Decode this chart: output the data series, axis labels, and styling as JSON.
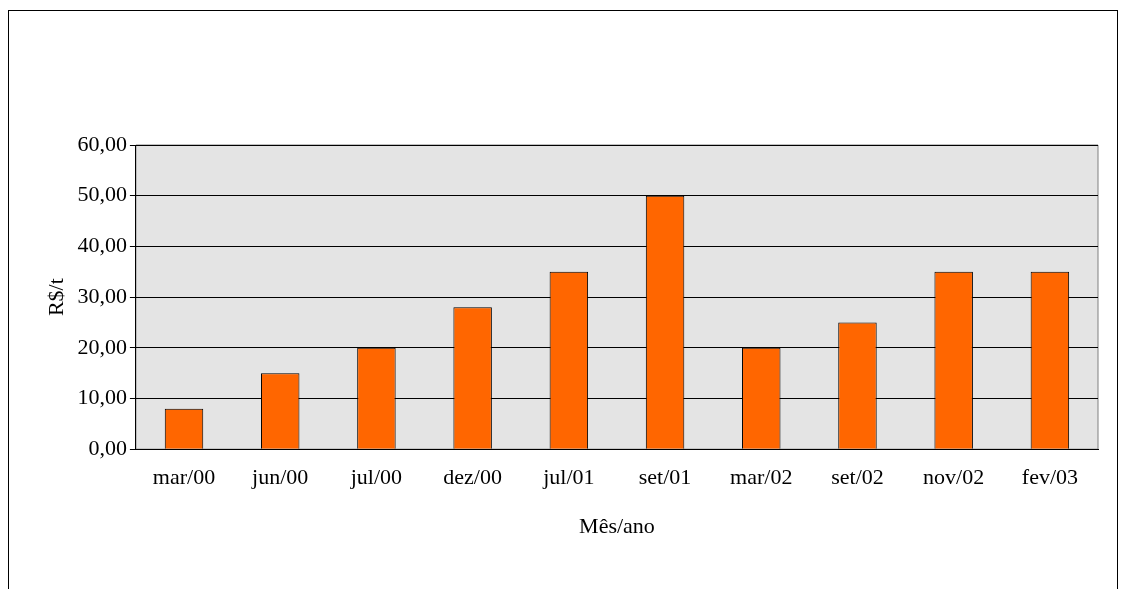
{
  "chart_data": {
    "type": "bar",
    "xlabel": "Mês/ano",
    "ylabel": "R$/t",
    "categories": [
      "mar/00",
      "jun/00",
      "jul/00",
      "dez/00",
      "jul/01",
      "set/01",
      "mar/02",
      "set/02",
      "nov/02",
      "fev/03"
    ],
    "values": [
      8,
      15,
      20,
      28,
      35,
      50,
      20,
      25,
      35,
      35
    ],
    "color": "#ff6600",
    "ylim": [
      0,
      60
    ],
    "yticks": [
      {
        "value": 0,
        "label": "0,00"
      },
      {
        "value": 10,
        "label": "10,00"
      },
      {
        "value": 20,
        "label": "20,00"
      },
      {
        "value": 30,
        "label": "30,00"
      },
      {
        "value": 40,
        "label": "40,00"
      },
      {
        "value": 50,
        "label": "50,00"
      },
      {
        "value": 60,
        "label": "60,00"
      }
    ],
    "grid": "y",
    "legend": false
  }
}
